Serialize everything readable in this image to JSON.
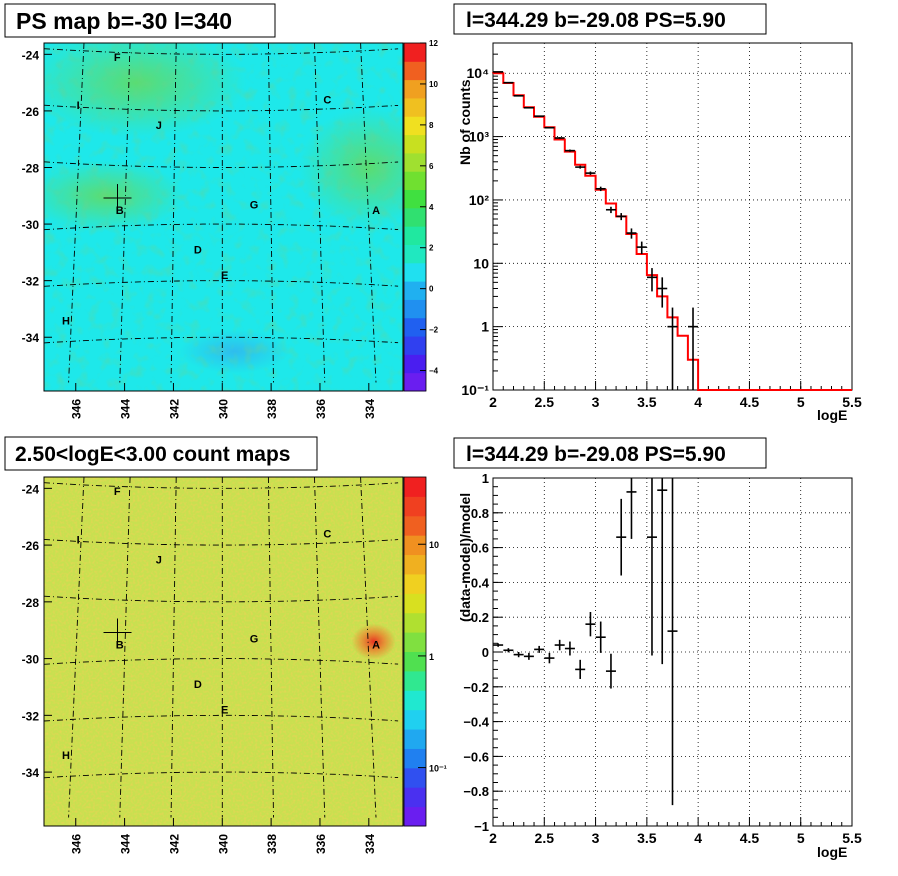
{
  "panels": {
    "map_top": {
      "title": "PS map b=-30 l=340",
      "yticks": [
        "-24",
        "-26",
        "-28",
        "-30",
        "-32",
        "-34"
      ],
      "xticks": [
        "346",
        "344",
        "342",
        "340",
        "338",
        "336",
        "334"
      ],
      "colorbar_ticks": [
        "12",
        "10",
        "8",
        "6",
        "4",
        "2",
        "0",
        "−2",
        "−4"
      ],
      "sources": [
        "F",
        "I",
        "J",
        "C",
        "B",
        "G",
        "A",
        "D",
        "E",
        "H"
      ]
    },
    "map_bottom": {
      "title": "2.50<logE<3.00 count maps",
      "yticks": [
        "-24",
        "-26",
        "-28",
        "-30",
        "-32",
        "-34"
      ],
      "xticks": [
        "346",
        "344",
        "342",
        "340",
        "338",
        "336",
        "334"
      ],
      "colorbar_ticks": [
        "10",
        "1",
        "10⁻¹"
      ],
      "sources": [
        "F",
        "I",
        "J",
        "C",
        "B",
        "G",
        "A",
        "D",
        "E",
        "H"
      ]
    },
    "spectrum": {
      "title": "l=344.29 b=-29.08 PS=5.90",
      "xlabel": "logE",
      "ylabel": "Nb of counts",
      "xticks": [
        "2",
        "2.5",
        "3",
        "3.5",
        "4",
        "4.5",
        "5",
        "5.5"
      ],
      "yticks": [
        "10⁻¹",
        "1",
        "10",
        "10²",
        "10³",
        "10⁴"
      ]
    },
    "residual": {
      "title": "l=344.29 b=-29.08 PS=5.90",
      "xlabel": "logE",
      "ylabel": "(data-model)/model",
      "xticks": [
        "2",
        "2.5",
        "3",
        "3.5",
        "4",
        "4.5",
        "5",
        "5.5"
      ],
      "yticks": [
        "−1",
        "−0.8",
        "−0.6",
        "−0.4",
        "−0.2",
        "0",
        "0.2",
        "0.4",
        "0.6",
        "0.8",
        "1"
      ]
    }
  },
  "colors": {
    "model_line": "#ff0000",
    "data_marker": "#000000",
    "map_top_background": "#1ee8ea",
    "map_bottom_background": "#c8e050",
    "grid": "#000000"
  },
  "chart_data": [
    {
      "type": "heatmap",
      "title": "PS map b=-30 l=340",
      "xlabel": "",
      "ylabel": "",
      "xlim": [
        347.3,
        332.6
      ],
      "ylim": [
        -35.9,
        -23.6
      ],
      "zlim": [
        -5,
        12
      ],
      "colorbar": "right",
      "grid": true,
      "sources": [
        {
          "name": "F",
          "l": 344.3,
          "b": -24.1
        },
        {
          "name": "I",
          "l": 345.9,
          "b": -25.8
        },
        {
          "name": "J",
          "l": 342.6,
          "b": -26.5
        },
        {
          "name": "C",
          "l": 335.7,
          "b": -25.6
        },
        {
          "name": "B",
          "l": 344.2,
          "b": -29.5
        },
        {
          "name": "G",
          "l": 338.7,
          "b": -29.3
        },
        {
          "name": "A",
          "l": 333.7,
          "b": -29.5
        },
        {
          "name": "D",
          "l": 341.0,
          "b": -30.9
        },
        {
          "name": "E",
          "l": 339.9,
          "b": -31.8
        },
        {
          "name": "H",
          "l": 346.4,
          "b": -33.4
        }
      ],
      "marker": {
        "l": 344.29,
        "b": -29.08
      }
    },
    {
      "type": "heatmap",
      "title": "2.50<logE<3.00 count maps",
      "xlabel": "",
      "ylabel": "",
      "xlim": [
        347.3,
        332.6
      ],
      "ylim": [
        -35.9,
        -23.6
      ],
      "zlim": [
        0.03,
        40
      ],
      "zscale": "log",
      "colorbar": "right",
      "grid": true,
      "sources": [
        {
          "name": "F",
          "l": 344.3,
          "b": -24.1
        },
        {
          "name": "I",
          "l": 345.9,
          "b": -25.8
        },
        {
          "name": "J",
          "l": 342.6,
          "b": -26.5
        },
        {
          "name": "C",
          "l": 335.7,
          "b": -25.6
        },
        {
          "name": "B",
          "l": 344.2,
          "b": -29.5
        },
        {
          "name": "G",
          "l": 338.7,
          "b": -29.3
        },
        {
          "name": "A",
          "l": 333.7,
          "b": -29.5
        },
        {
          "name": "D",
          "l": 341.0,
          "b": -30.9
        },
        {
          "name": "E",
          "l": 339.9,
          "b": -31.8
        },
        {
          "name": "H",
          "l": 346.4,
          "b": -33.4
        }
      ],
      "marker": {
        "l": 344.29,
        "b": -29.08
      }
    },
    {
      "type": "line",
      "title": "l=344.29 b=-29.08 PS=5.90",
      "xlabel": "logE",
      "ylabel": "Nb of counts",
      "xlim": [
        2,
        5.5
      ],
      "ylim": [
        0.1,
        30000
      ],
      "yscale": "log",
      "grid": true,
      "series": [
        {
          "bin_edges": [
            2.0,
            2.1,
            2.2,
            2.3,
            2.4,
            2.5,
            2.6,
            2.7,
            2.8,
            2.9,
            3.0,
            3.1,
            3.2,
            3.3,
            3.4,
            3.5,
            3.6,
            3.7,
            3.8,
            3.9,
            4.0,
            4.1,
            5.5
          ],
          "values": [
            10000,
            7000,
            4500,
            2900,
            2050,
            1400,
            900,
            580,
            360,
            240,
            145,
            88,
            55,
            29,
            14,
            6.5,
            3.0,
            1.4,
            0.72,
            0.3,
            0.1,
            0.1
          ]
        },
        {
          "x": [
            2.05,
            2.15,
            2.25,
            2.35,
            2.45,
            2.55,
            2.65,
            2.75,
            2.85,
            2.95,
            3.05,
            3.15,
            3.25,
            3.35,
            3.45,
            3.55,
            3.65,
            3.75,
            3.95
          ],
          "y": [
            10500,
            7100,
            4400,
            2850,
            2100,
            1380,
            950,
            600,
            330,
            265,
            150,
            70,
            55,
            30,
            18,
            6,
            4,
            1,
            1
          ],
          "yerr_low": [
            100,
            85,
            65,
            55,
            45,
            37,
            30,
            25,
            18,
            16,
            12,
            8,
            7,
            5.5,
            4,
            2.4,
            2,
            0.9,
            0.9
          ],
          "yerr_high": [
            100,
            85,
            65,
            55,
            45,
            37,
            30,
            25,
            18,
            16,
            12,
            8,
            7,
            5.5,
            4,
            2.4,
            2,
            1,
            1
          ]
        }
      ]
    },
    {
      "type": "scatter",
      "title": "l=344.29 b=-29.08 PS=5.90",
      "xlabel": "logE",
      "ylabel": "(data-model)/model",
      "xlim": [
        2,
        5.5
      ],
      "ylim": [
        -1,
        1
      ],
      "grid": true,
      "series": [
        {
          "x": [
            2.05,
            2.15,
            2.25,
            2.35,
            2.45,
            2.55,
            2.65,
            2.75,
            2.85,
            2.95,
            3.05,
            3.15,
            3.25,
            3.35,
            3.55,
            3.65,
            3.75
          ],
          "y": [
            0.04,
            0.01,
            -0.015,
            -0.025,
            0.015,
            -0.035,
            0.04,
            0.02,
            -0.1,
            0.16,
            0.085,
            -0.11,
            0.66,
            0.92,
            0.66,
            0.93,
            0.12
          ],
          "yerr_low": [
            0.01,
            0.012,
            0.015,
            0.02,
            0.02,
            0.03,
            0.03,
            0.04,
            0.055,
            0.07,
            0.09,
            0.1,
            0.22,
            0.27,
            0.68,
            1.0,
            1.0
          ],
          "yerr_high": [
            0.01,
            0.012,
            0.015,
            0.02,
            0.02,
            0.03,
            0.03,
            0.04,
            0.055,
            0.07,
            0.09,
            0.1,
            0.22,
            0.27,
            0.68,
            1.0,
            1.0
          ]
        }
      ]
    }
  ]
}
